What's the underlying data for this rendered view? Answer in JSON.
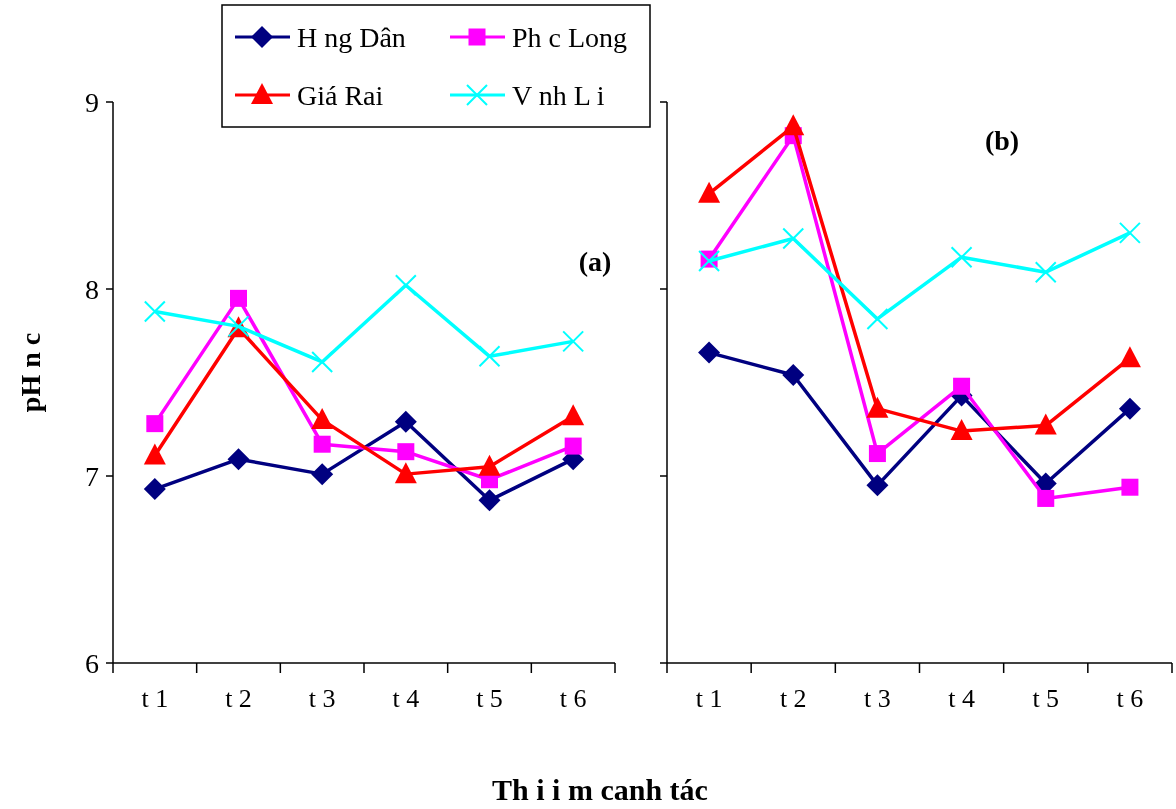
{
  "chart_data": [
    {
      "type": "line",
      "title": "(a)",
      "xlabel": "Th i i m canh tác",
      "ylabel": "pH n c",
      "categories": [
        "t 1",
        "t 2",
        "t 3",
        "t 4",
        "t 5",
        "t 6"
      ],
      "ylim": [
        6,
        9
      ],
      "yticks": [
        6,
        7,
        8,
        9
      ],
      "legend": "top",
      "grid": false,
      "series": [
        {
          "name": "H ng Dân",
          "color": "#000080",
          "marker": "diamond",
          "values": [
            6.93,
            7.09,
            7.01,
            7.29,
            6.87,
            7.09
          ]
        },
        {
          "name": "Ph c Long",
          "color": "#ff00ff",
          "marker": "square",
          "values": [
            7.28,
            7.95,
            7.17,
            7.13,
            6.98,
            7.16
          ]
        },
        {
          "name": "Giá Rai",
          "color": "#ff0000",
          "marker": "triangle",
          "values": [
            7.11,
            7.79,
            7.3,
            7.01,
            7.05,
            7.32
          ]
        },
        {
          "name": "V nh L i",
          "color": "#00ffff",
          "marker": "cross",
          "values": [
            7.88,
            7.8,
            7.61,
            8.02,
            7.64,
            7.72
          ]
        }
      ]
    },
    {
      "type": "line",
      "title": "(b)",
      "categories": [
        "t 1",
        "t 2",
        "t 3",
        "t 4",
        "t 5",
        "t 6"
      ],
      "ylim": [
        6,
        9
      ],
      "yticks": [
        6,
        7,
        8,
        9
      ],
      "tick_labels": "x",
      "grid": false,
      "series": [
        {
          "color": "#000080",
          "marker": "diamond",
          "values": [
            7.66,
            7.54,
            6.95,
            7.43,
            6.96,
            7.36
          ]
        },
        {
          "color": "#ff00ff",
          "marker": "square",
          "values": [
            8.16,
            8.82,
            7.12,
            7.48,
            6.88,
            6.94
          ]
        },
        {
          "color": "#ff0000",
          "marker": "triangle",
          "values": [
            8.51,
            8.87,
            7.36,
            7.24,
            7.27,
            7.63
          ]
        },
        {
          "color": "#00ffff",
          "marker": "cross",
          "values": [
            8.15,
            8.27,
            7.84,
            8.17,
            8.09,
            8.3
          ]
        }
      ]
    }
  ]
}
